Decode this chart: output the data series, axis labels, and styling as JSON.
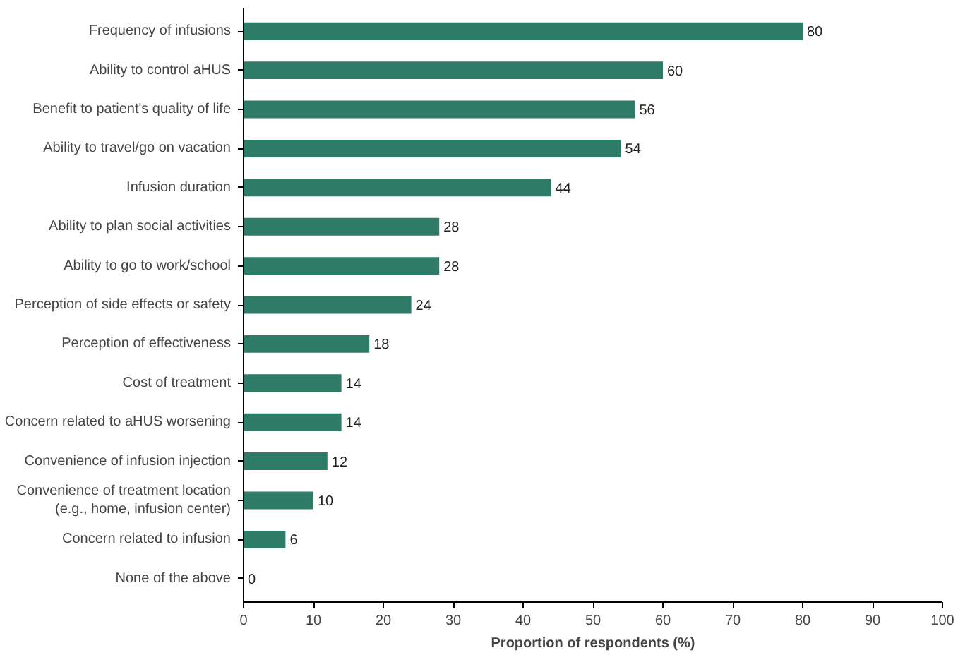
{
  "chart_data": {
    "type": "bar",
    "orientation": "horizontal",
    "xlabel": "Proportion of respondents (%)",
    "categories": [
      "Frequency of infusions",
      "Ability to control aHUS",
      "Benefit to patient's quality of life",
      "Ability to travel/go on vacation",
      "Infusion duration",
      "Ability to plan social activities",
      "Ability to go to work/school",
      "Perception of side effects or safety",
      "Perception of effectiveness",
      "Cost of treatment",
      "Concern related to aHUS worsening",
      "Convenience of infusion injection",
      "Convenience of treatment location\n(e.g., home, infusion center)",
      "Concern related to infusion",
      "None of the above"
    ],
    "values": [
      80,
      60,
      56,
      54,
      44,
      28,
      28,
      24,
      18,
      14,
      14,
      12,
      10,
      6,
      0
    ],
    "color": "#2e7b68",
    "data_labels": true,
    "xlim": [
      0,
      100
    ],
    "xticks": [
      0,
      10,
      20,
      30,
      40,
      50,
      60,
      70,
      80,
      90,
      100
    ],
    "grid": false
  }
}
